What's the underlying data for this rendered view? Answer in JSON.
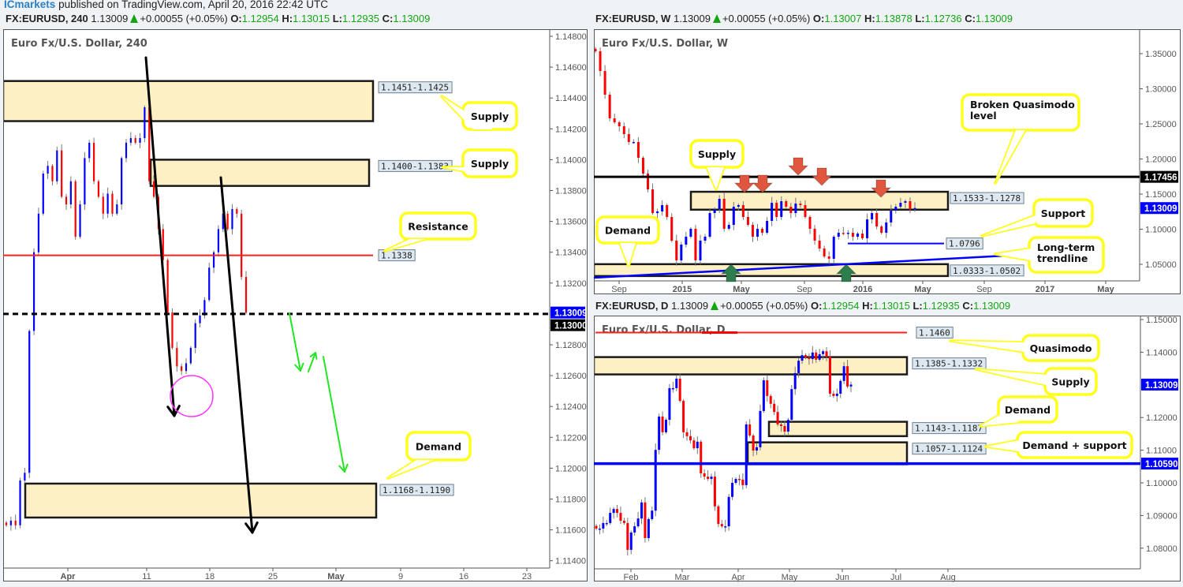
{
  "publisher": {
    "name": "ICmarkets",
    "text": "published on TradingView.com, April 20, 2016 22:42 UTC"
  },
  "colors": {
    "up": "#0000ff",
    "down": "#ff0000",
    "zone_fill": "#fdf0c4",
    "zone_border": "#1a1a1a",
    "callout_border": "#ffff1a",
    "resistance": "#ff2020",
    "support": "#0000ff",
    "green_arrow": "#22e622"
  },
  "headers": [
    {
      "symbol": "FX:EURUSD, 240",
      "price": "1.13009",
      "change": "+0.00055 (+0.05%)",
      "o": "1.12954",
      "h": "1.13015",
      "l": "1.12935",
      "c": "1.13009"
    },
    {
      "symbol": "FX:EURUSD, W",
      "price": "1.13009",
      "change": "+0.00055 (+0.05%)",
      "o": "1.13007",
      "h": "1.13878",
      "l": "1.12736",
      "c": "1.13009"
    },
    {
      "symbol": "FX:EURUSD, D",
      "price": "1.13009",
      "change": "+0.00055 (+0.05%)",
      "o": "1.12954",
      "h": "1.13015",
      "l": "1.12935",
      "c": "1.13009"
    }
  ],
  "chart_data": [
    {
      "type": "candlestick",
      "title": "Euro Fx/U.S. Dollar, 240",
      "ylim": [
        1.1135,
        1.1485
      ],
      "price_ticks": [
        "1.14800",
        "1.14600",
        "1.14400",
        "1.14200",
        "1.14000",
        "1.13800",
        "1.13600",
        "1.13400",
        "1.13200",
        "1.12800",
        "1.12600",
        "1.12400",
        "1.12200",
        "1.12000",
        "1.11800",
        "1.11600",
        "1.11400"
      ],
      "time_ticks": [
        "Apr",
        "11",
        "18",
        "25",
        "May",
        "9",
        "16",
        "23"
      ],
      "price_tags": [
        {
          "text": "1.13009",
          "value": 1.13009,
          "color": "#0000ff"
        },
        {
          "text": "1.13000",
          "value": 1.13,
          "color": "#000000"
        }
      ],
      "closes": [
        1.1163,
        1.1166,
        1.1163,
        1.1192,
        1.1197,
        1.1289,
        1.134,
        1.1365,
        1.1391,
        1.1396,
        1.1386,
        1.1406,
        1.1376,
        1.1371,
        1.1386,
        1.135,
        1.1371,
        1.1401,
        1.1411,
        1.1386,
        1.1376,
        1.1365,
        1.1378,
        1.1365,
        1.1371,
        1.1401,
        1.1411,
        1.1414,
        1.1411,
        1.1414,
        1.1434,
        1.1386,
        1.1376,
        1.1355,
        1.1335,
        1.1301,
        1.1278,
        1.1266,
        1.1263,
        1.1268,
        1.1278,
        1.1294,
        1.1299,
        1.1309,
        1.133,
        1.134,
        1.1355,
        1.1365,
        1.1355,
        1.1368,
        1.1365,
        1.1324,
        1.13009
      ],
      "zones": [
        {
          "label": "1.1451-1.1425",
          "high": 1.1451,
          "low": 1.1425
        },
        {
          "label": "1.1400-1.1383",
          "high": 1.14,
          "low": 1.1383
        },
        {
          "label": "1.1168-1.1190",
          "high": 1.119,
          "low": 1.1168
        }
      ],
      "levels": [
        {
          "label": "1.1338",
          "value": 1.1338,
          "color": "#ff2020",
          "style": "solid"
        },
        {
          "label": "",
          "value": 1.13,
          "color": "#000000",
          "style": "dashed"
        }
      ],
      "callouts": [
        "Supply",
        "Supply",
        "Resistance",
        "Demand"
      ]
    },
    {
      "type": "candlestick",
      "title": "Euro Fx/U.S. Dollar, W",
      "ylim": [
        1.02,
        1.37
      ],
      "price_ticks": [
        "1.35000",
        "1.30000",
        "1.25000",
        "1.20000",
        "1.15000",
        "1.10000",
        "1.05000"
      ],
      "time_ticks": [
        "Sep",
        "2015",
        "May",
        "Sep",
        "2016",
        "May",
        "Sep",
        "2017",
        "May"
      ],
      "price_tags": [
        {
          "text": "1.17456",
          "value": 1.17456,
          "color": "#000000"
        },
        {
          "text": "1.13009",
          "value": 1.13009,
          "color": "#0000ff"
        }
      ],
      "closes": [
        1.3534,
        1.3253,
        1.2916,
        1.2579,
        1.2522,
        1.2466,
        1.2354,
        1.2242,
        1.2242,
        1.2017,
        1.1792,
        1.1567,
        1.123,
        1.1253,
        1.1343,
        1.1174,
        1.0837,
        1.0556,
        1.0781,
        1.0893,
        1.1006,
        1.0556,
        1.0837,
        1.0893,
        1.123,
        1.1287,
        1.1433,
        1.1006,
        1.1062,
        1.132,
        1.1343,
        1.1174,
        1.1062,
        1.0893,
        1.1006,
        1.0949,
        1.1118,
        1.1376,
        1.1174,
        1.1399,
        1.132,
        1.123,
        1.1365,
        1.1343,
        1.1174,
        1.1006,
        1.0837,
        1.0725,
        1.0612,
        1.0579,
        1.0893,
        1.0949,
        1.0938,
        1.0949,
        1.0893,
        1.0938,
        1.0871,
        1.114,
        1.123,
        1.1039,
        1.0949,
        1.1096,
        1.1264,
        1.132,
        1.1376,
        1.1399,
        1.1287,
        1.13009
      ],
      "zones": [
        {
          "label": "1.1533-1.1278",
          "high": 1.1533,
          "low": 1.1278
        },
        {
          "label": "1.0333-1.0502",
          "high": 1.0502,
          "low": 1.0333
        }
      ],
      "levels": [
        {
          "label": "",
          "value": 1.17456,
          "color": "#000000",
          "style": "solid"
        },
        {
          "label": "1.0796",
          "value": 1.0796,
          "color": "#0000ff",
          "style": "solid"
        }
      ],
      "callouts": [
        "Supply",
        "Demand",
        "Broken Quasimodo\nlevel",
        "Support",
        "Long-term\ntrendline"
      ]
    },
    {
      "type": "candlestick",
      "title": "Euro Fx/U.S. Dollar, D",
      "ylim": [
        1.0725,
        1.1505
      ],
      "price_ticks": [
        "1.15000",
        "1.14000",
        "1.12000",
        "1.11000",
        "1.10000",
        "1.09000",
        "1.08000"
      ],
      "time_ticks": [
        "Feb",
        "Mar",
        "Apr",
        "May",
        "Jun",
        "Jul",
        "Aug"
      ],
      "price_tags": [
        {
          "text": "1.13009",
          "value": 1.13009,
          "color": "#0000ff"
        },
        {
          "text": "1.10590",
          "value": 1.1059,
          "color": "#0000ff"
        }
      ],
      "closes": [
        1.086,
        1.086,
        1.0877,
        1.0877,
        1.0908,
        1.092,
        1.0908,
        1.0884,
        1.0877,
        1.0795,
        1.0848,
        1.0867,
        1.0891,
        1.094,
        1.0831,
        1.0889,
        1.0915,
        1.1101,
        1.1203,
        1.1155,
        1.1193,
        1.129,
        1.129,
        1.1319,
        1.1251,
        1.1155,
        1.1143,
        1.113,
        1.1106,
        1.1126,
        1.1029,
        1.1019,
        1.1012,
        1.1019,
        1.0928,
        1.0874,
        1.0867,
        1.0867,
        1.0957,
        1.1,
        1.1012,
        1.101,
        1.0993,
        1.1179,
        1.1145,
        1.1099,
        1.1109,
        1.122,
        1.1314,
        1.1266,
        1.1242,
        1.1217,
        1.1179,
        1.1174,
        1.1157,
        1.1193,
        1.1287,
        1.1336,
        1.1374,
        1.1391,
        1.1384,
        1.1379,
        1.1399,
        1.1377,
        1.1394,
        1.1403,
        1.1386,
        1.1273,
        1.1266,
        1.1273,
        1.1312,
        1.1357,
        1.1295,
        1.13009
      ],
      "zones": [
        {
          "label": "1.1385-1.1332",
          "high": 1.1385,
          "low": 1.1332
        },
        {
          "label": "1.1143-1.1187",
          "high": 1.1187,
          "low": 1.1143
        },
        {
          "label": "1.1057-1.1124",
          "high": 1.1124,
          "low": 1.1057
        }
      ],
      "levels": [
        {
          "label": "1.1460",
          "value": 1.146,
          "color": "#ff2020",
          "style": "solid"
        },
        {
          "label": "",
          "value": 1.1059,
          "color": "#0000ff",
          "style": "solid"
        }
      ],
      "callouts": [
        "Quasimodo",
        "Supply",
        "Demand",
        "Demand + support"
      ]
    }
  ]
}
